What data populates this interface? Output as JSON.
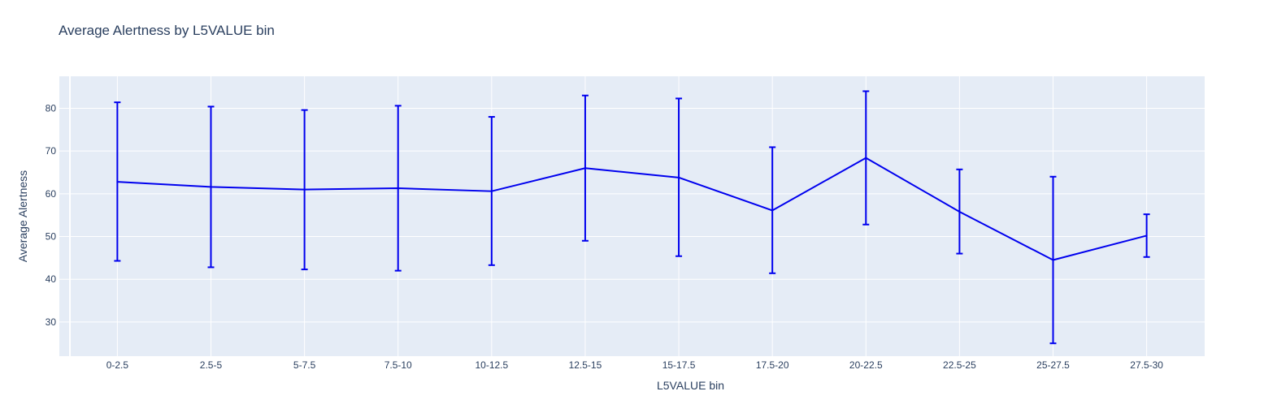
{
  "chart_data": {
    "type": "line",
    "title": "Average Alertness by L5VALUE bin",
    "xlabel": "L5VALUE bin",
    "ylabel": "Average Alertness",
    "categories": [
      "0-2.5",
      "2.5-5",
      "5-7.5",
      "7.5-10",
      "10-12.5",
      "12.5-15",
      "15-17.5",
      "17.5-20",
      "20-22.5",
      "22.5-25",
      "25-27.5",
      "27.5-30"
    ],
    "series": [
      {
        "values": [
          62.8,
          61.6,
          61.0,
          61.3,
          60.6,
          66.0,
          63.8,
          56.1,
          68.4,
          55.8,
          44.5,
          50.2
        ],
        "error_upper": [
          81.4,
          80.4,
          79.6,
          80.6,
          78.0,
          83.0,
          82.3,
          70.9,
          84.0,
          65.7,
          64.0,
          55.2
        ],
        "error_lower": [
          44.3,
          42.8,
          42.3,
          42.0,
          43.3,
          49.0,
          45.4,
          41.4,
          52.8,
          46.0,
          25.0,
          45.2
        ]
      }
    ],
    "ylim": [
      22,
      87.5
    ],
    "yticks": [
      30,
      40,
      50,
      60,
      70,
      80
    ],
    "grid": true,
    "legend": "none",
    "colors": {
      "line": "#0000ee",
      "plot_bg": "#e5ecf6",
      "grid": "#ffffff",
      "text": "#2a3f5f"
    }
  }
}
